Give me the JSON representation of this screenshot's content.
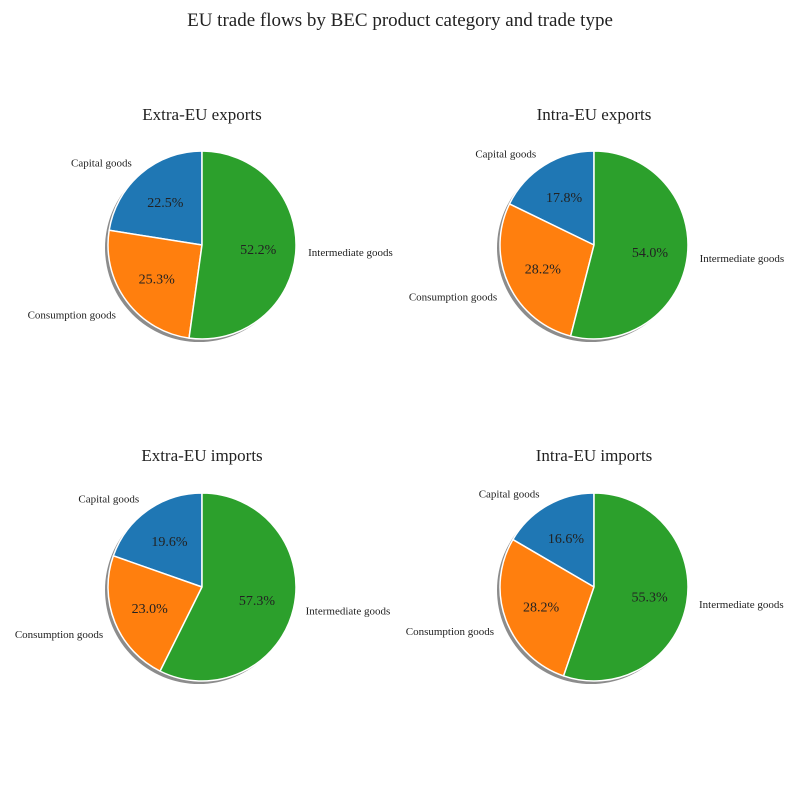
{
  "suptitle": "EU trade flows by BEC product category and trade type",
  "chart_data": [
    {
      "type": "pie",
      "title": "Extra-EU exports",
      "labels": [
        "Capital goods",
        "Consumption goods",
        "Intermediate goods"
      ],
      "values": [
        22.5,
        25.3,
        52.2
      ],
      "colors": [
        "#1f77b4",
        "#ff7f0e",
        "#2ca02c"
      ],
      "autopct": [
        "22.5%",
        "25.3%",
        "52.2%"
      ],
      "startangle": 90,
      "counterclockwise": true,
      "shadow": true
    },
    {
      "type": "pie",
      "title": "Intra-EU exports",
      "labels": [
        "Capital goods",
        "Consumption goods",
        "Intermediate goods"
      ],
      "values": [
        17.8,
        28.2,
        54.0
      ],
      "colors": [
        "#1f77b4",
        "#ff7f0e",
        "#2ca02c"
      ],
      "autopct": [
        "17.8%",
        "28.2%",
        "54.0%"
      ],
      "startangle": 90,
      "counterclockwise": true,
      "shadow": true
    },
    {
      "type": "pie",
      "title": "Extra-EU imports",
      "labels": [
        "Capital goods",
        "Consumption goods",
        "Intermediate goods"
      ],
      "values": [
        19.6,
        23.0,
        57.3
      ],
      "colors": [
        "#1f77b4",
        "#ff7f0e",
        "#2ca02c"
      ],
      "autopct": [
        "19.6%",
        "23.0%",
        "57.3%"
      ],
      "startangle": 90,
      "counterclockwise": true,
      "shadow": true
    },
    {
      "type": "pie",
      "title": "Intra-EU imports",
      "labels": [
        "Capital goods",
        "Consumption goods",
        "Intermediate goods"
      ],
      "values": [
        16.6,
        28.2,
        55.3
      ],
      "colors": [
        "#1f77b4",
        "#ff7f0e",
        "#2ca02c"
      ],
      "autopct": [
        "16.6%",
        "28.2%",
        "55.3%"
      ],
      "startangle": 90,
      "counterclockwise": true,
      "shadow": true
    }
  ]
}
